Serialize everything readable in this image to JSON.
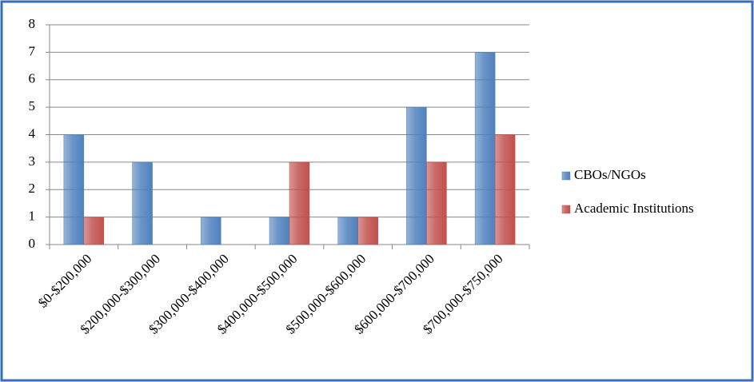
{
  "chart_data": {
    "type": "bar",
    "categories": [
      "$0-$200,000",
      "$200,000-$300,000",
      "$300,000-$400,000",
      "$400,000-$500,000",
      "$500,000-$600,000",
      "$600,000-$700,000",
      "$700,000-$750,000"
    ],
    "series": [
      {
        "name": "CBOs/NGOs",
        "color": "#4f81bd",
        "values": [
          4,
          3,
          1,
          1,
          1,
          5,
          7
        ]
      },
      {
        "name": "Academic Institutions",
        "color": "#c0504d",
        "values": [
          1,
          0,
          0,
          3,
          1,
          3,
          4
        ]
      }
    ],
    "ylim": [
      0,
      8
    ],
    "yticks": [
      0,
      1,
      2,
      3,
      4,
      5,
      6,
      7,
      8
    ],
    "grid": true,
    "legend": "right"
  }
}
